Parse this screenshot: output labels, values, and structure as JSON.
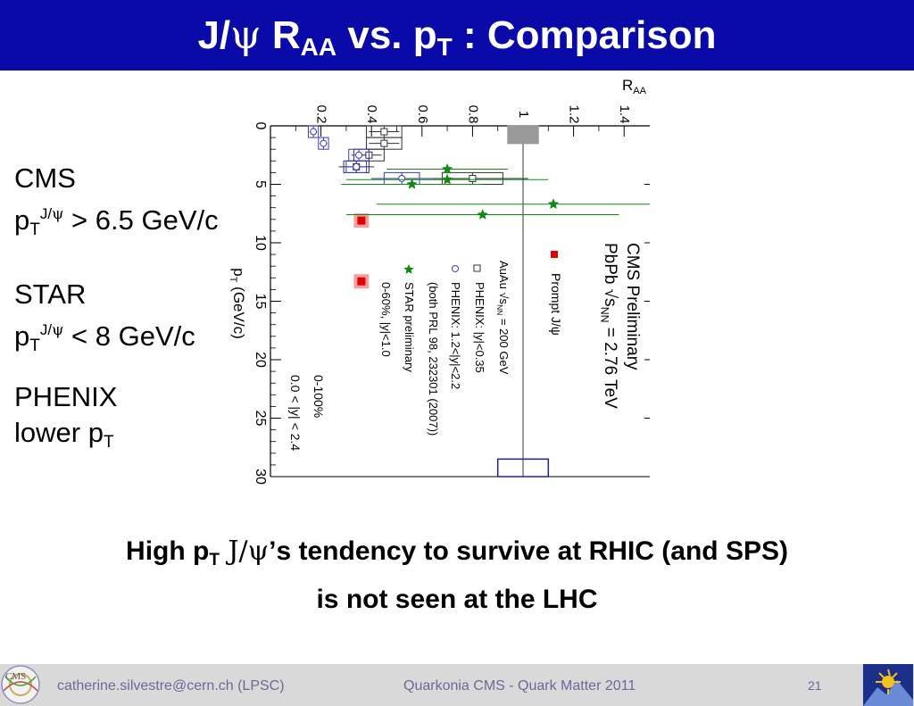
{
  "slide": {
    "title_parts": [
      "J/",
      "ψ",
      " R",
      "AA",
      " vs. p",
      "T",
      " : Comparison"
    ],
    "cms": {
      "name": "CMS",
      "p": "p",
      "T": "T",
      "sup": "J/",
      "psi": "ψ",
      "rest": " > 6.5 GeV/c"
    },
    "star": {
      "name": "STAR",
      "p": "p",
      "T": "T",
      "sup": "J/",
      "psi": "ψ",
      "rest": " < 8 GeV/c"
    },
    "phenix": {
      "name": "PHENIX",
      "lower": "lower p",
      "T": "T"
    },
    "conclusion": {
      "a": "High p",
      "T": "T",
      "b": " J/",
      "psi": "ψ",
      "c": "’s tendency to survive at RHIC (and SPS)",
      "line2": "is not seen at the LHC"
    },
    "footer": {
      "email": "catherine.silvestre@cern.ch (LPSC)",
      "conference": "Quarkonia CMS - Quark Matter 2011",
      "page": "21"
    }
  },
  "colors": {
    "title_bg": "#0a0aa8",
    "cms": "#e00000",
    "star": "#108a10",
    "phenix": "#3a3acc",
    "footer_bg": "#d9d9d9"
  },
  "chart_data": {
    "type": "scatter",
    "orientation": "rotated 90 degrees clockwise",
    "x_label": "p_T (GeV/c)",
    "y_label": "R_AA",
    "x_ticks": [
      "0",
      "5",
      "10",
      "15",
      "20",
      "25",
      "30"
    ],
    "y_ticks": [
      "0.2",
      "0.4",
      "0.6",
      "0.8",
      "1",
      "1.2",
      "1.4"
    ],
    "xlim": [
      0,
      30
    ],
    "ylim": [
      0,
      1.5
    ],
    "reference_line": 1.0,
    "annotations": {
      "cms_prelim": "CMS Preliminary",
      "pbpb": "PbPb √s",
      "pbpb_sub": "NN",
      "pbpb_val": " = 2.76 TeV",
      "prompt": "Prompt J/ψ",
      "auau": "AuAu √s",
      "auau_sub": "NN",
      "auau_val": " = 200 GeV",
      "phenix_mid": "PHENIX: |y|<0.35",
      "phenix_fwd": "PHENIX: 1.2<|y|<2.2",
      "phenix_ref": "(both PRL 98, 232301 (2007))",
      "star_prelim": "STAR preliminary",
      "star_cent": "0-60%, |y|<1.0",
      "cms_cent": "0-100%",
      "cms_rap": "0.0 < |y| < 2.4"
    },
    "series": [
      {
        "name": "Prompt J/ψ",
        "marker": "filled-square",
        "color": "#e00000",
        "points": [
          {
            "pt": 8.1,
            "raa": 0.36,
            "pt_err": 0,
            "stat": 0.02,
            "syst": 0.03
          },
          {
            "pt": 13.3,
            "raa": 0.36,
            "pt_err": 0,
            "stat": 0.02,
            "syst": 0.03
          }
        ]
      },
      {
        "name": "PHENIX: |y|<0.35",
        "marker": "open-square",
        "color": "#333333",
        "points": [
          {
            "pt": 0.5,
            "raa": 0.45,
            "pt_err": 0.5,
            "stat": 0.06,
            "syst": 0.07
          },
          {
            "pt": 1.5,
            "raa": 0.45,
            "pt_err": 0.5,
            "stat": 0.06,
            "syst": 0.07
          },
          {
            "pt": 2.5,
            "raa": 0.39,
            "pt_err": 0.5,
            "stat": 0.05,
            "syst": 0.06
          },
          {
            "pt": 3.5,
            "raa": 0.34,
            "pt_err": 0.5,
            "stat": 0.07,
            "syst": 0.05
          },
          {
            "pt": 4.5,
            "raa": 0.8,
            "pt_err": 0.5,
            "stat": 0.22,
            "syst": 0.12
          }
        ]
      },
      {
        "name": "PHENIX: 1.2<|y|<2.2",
        "marker": "open-circle",
        "color": "#3a3acc",
        "points": [
          {
            "pt": 0.5,
            "raa": 0.17,
            "pt_err": 0.5,
            "stat": 0.015,
            "syst": 0.02
          },
          {
            "pt": 1.5,
            "raa": 0.21,
            "pt_err": 0.5,
            "stat": 0.015,
            "syst": 0.02
          },
          {
            "pt": 2.5,
            "raa": 0.35,
            "pt_err": 0.5,
            "stat": 0.03,
            "syst": 0.04
          },
          {
            "pt": 3.5,
            "raa": 0.34,
            "pt_err": 0.5,
            "stat": 0.04,
            "syst": 0.04
          },
          {
            "pt": 4.5,
            "raa": 0.52,
            "pt_err": 0.5,
            "stat": 0.12,
            "syst": 0.07
          }
        ]
      },
      {
        "name": "STAR preliminary",
        "marker": "star",
        "color": "#108a10",
        "points": [
          {
            "pt": 3.7,
            "raa": 0.7,
            "pt_err": 0,
            "stat": 0.24,
            "syst": 0
          },
          {
            "pt": 4.6,
            "raa": 0.7,
            "pt_err": 0,
            "stat": 0.4,
            "syst": 0
          },
          {
            "pt": 5.0,
            "raa": 0.56,
            "pt_err": 0,
            "stat": 0.28,
            "syst": 0
          },
          {
            "pt": 6.7,
            "raa": 1.12,
            "pt_err": 0,
            "stat": 0.7,
            "syst": 0
          },
          {
            "pt": 7.6,
            "raa": 0.84,
            "pt_err": 0,
            "stat": 0.54,
            "syst": 0
          }
        ]
      }
    ],
    "global_uncertainty_boxes": [
      {
        "pt": 0.75,
        "raa_low": 0.94,
        "raa_high": 1.06,
        "filled": true
      },
      {
        "pt": 29.25,
        "raa_low": 0.9,
        "raa_high": 1.1,
        "filled": false
      }
    ]
  }
}
